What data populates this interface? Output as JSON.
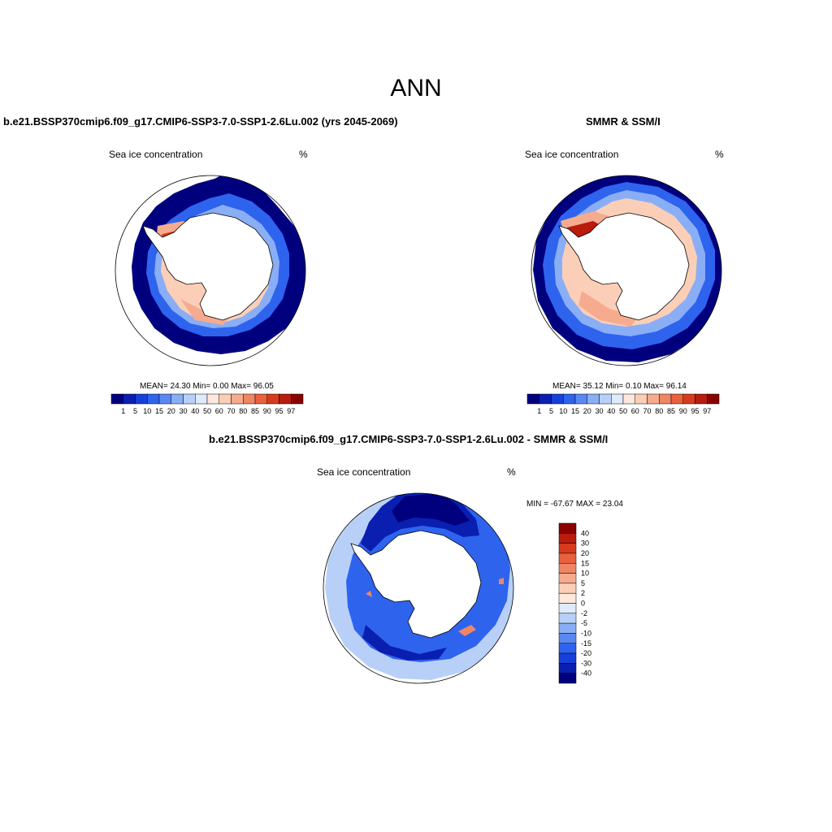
{
  "figure": {
    "season": "ANN"
  },
  "chart_data": [
    {
      "type": "heatmap",
      "title": "b.e21.BSSP370cmip6.f09_g17.CMIP6-SSP3-7.0-SSP1-2.6Lu.002 (yrs 2045-2069)",
      "variable_label": "Sea ice concentration",
      "units": "%",
      "projection": "south-polar-stereographic",
      "stats": {
        "text": "MEAN=  24.30  Min=   0.00  Max=  96.05",
        "mean": 24.3,
        "min": 0.0,
        "max": 96.05
      },
      "colorbar": {
        "orientation": "horizontal",
        "levels": [
          "1",
          "5",
          "10",
          "15",
          "20",
          "30",
          "40",
          "50",
          "60",
          "70",
          "80",
          "85",
          "90",
          "95",
          "97"
        ],
        "colors": [
          "#00007f",
          "#0a1fb0",
          "#1640d8",
          "#2e63ee",
          "#5a88f2",
          "#8aaef5",
          "#b8d0f8",
          "#dfeafb",
          "#fce8dc",
          "#fbcfb7",
          "#f6ab8f",
          "#f08566",
          "#e8603e",
          "#d83a1e",
          "#b81c0c",
          "#8b0000"
        ]
      }
    },
    {
      "type": "heatmap",
      "title": "SMMR & SSM/I",
      "variable_label": "Sea ice concentration",
      "units": "%",
      "projection": "south-polar-stereographic",
      "stats": {
        "text": "MEAN=  35.12  Min=   0.10  Max=  96.14",
        "mean": 35.12,
        "min": 0.1,
        "max": 96.14
      },
      "colorbar": {
        "orientation": "horizontal",
        "levels": [
          "1",
          "5",
          "10",
          "15",
          "20",
          "30",
          "40",
          "50",
          "60",
          "70",
          "80",
          "85",
          "90",
          "95",
          "97"
        ],
        "colors": [
          "#00007f",
          "#0a1fb0",
          "#1640d8",
          "#2e63ee",
          "#5a88f2",
          "#8aaef5",
          "#b8d0f8",
          "#dfeafb",
          "#fce8dc",
          "#fbcfb7",
          "#f6ab8f",
          "#f08566",
          "#e8603e",
          "#d83a1e",
          "#b81c0c",
          "#8b0000"
        ]
      }
    },
    {
      "type": "heatmap",
      "title": "b.e21.BSSP370cmip6.f09_g17.CMIP6-SSP3-7.0-SSP1-2.6Lu.002 - SMMR & SSM/I",
      "variable_label": "Sea ice concentration",
      "units": "%",
      "projection": "south-polar-stereographic",
      "stats": {
        "text": "MIN = -67.67 MAX =  23.04",
        "min": -67.67,
        "max": 23.04
      },
      "colorbar": {
        "orientation": "vertical",
        "levels": [
          "40",
          "30",
          "20",
          "15",
          "10",
          "5",
          "2",
          "0",
          "-2",
          "-5",
          "-10",
          "-15",
          "-20",
          "-30",
          "-40"
        ],
        "colors": [
          "#8b0000",
          "#b81c0c",
          "#d83a1e",
          "#e8603e",
          "#f08566",
          "#f6ab8f",
          "#fbcfb7",
          "#fce8dc",
          "#dfeafb",
          "#b8d0f8",
          "#8aaef5",
          "#5a88f2",
          "#2e63ee",
          "#1640d8",
          "#0a1fb0",
          "#00007f"
        ]
      }
    }
  ]
}
